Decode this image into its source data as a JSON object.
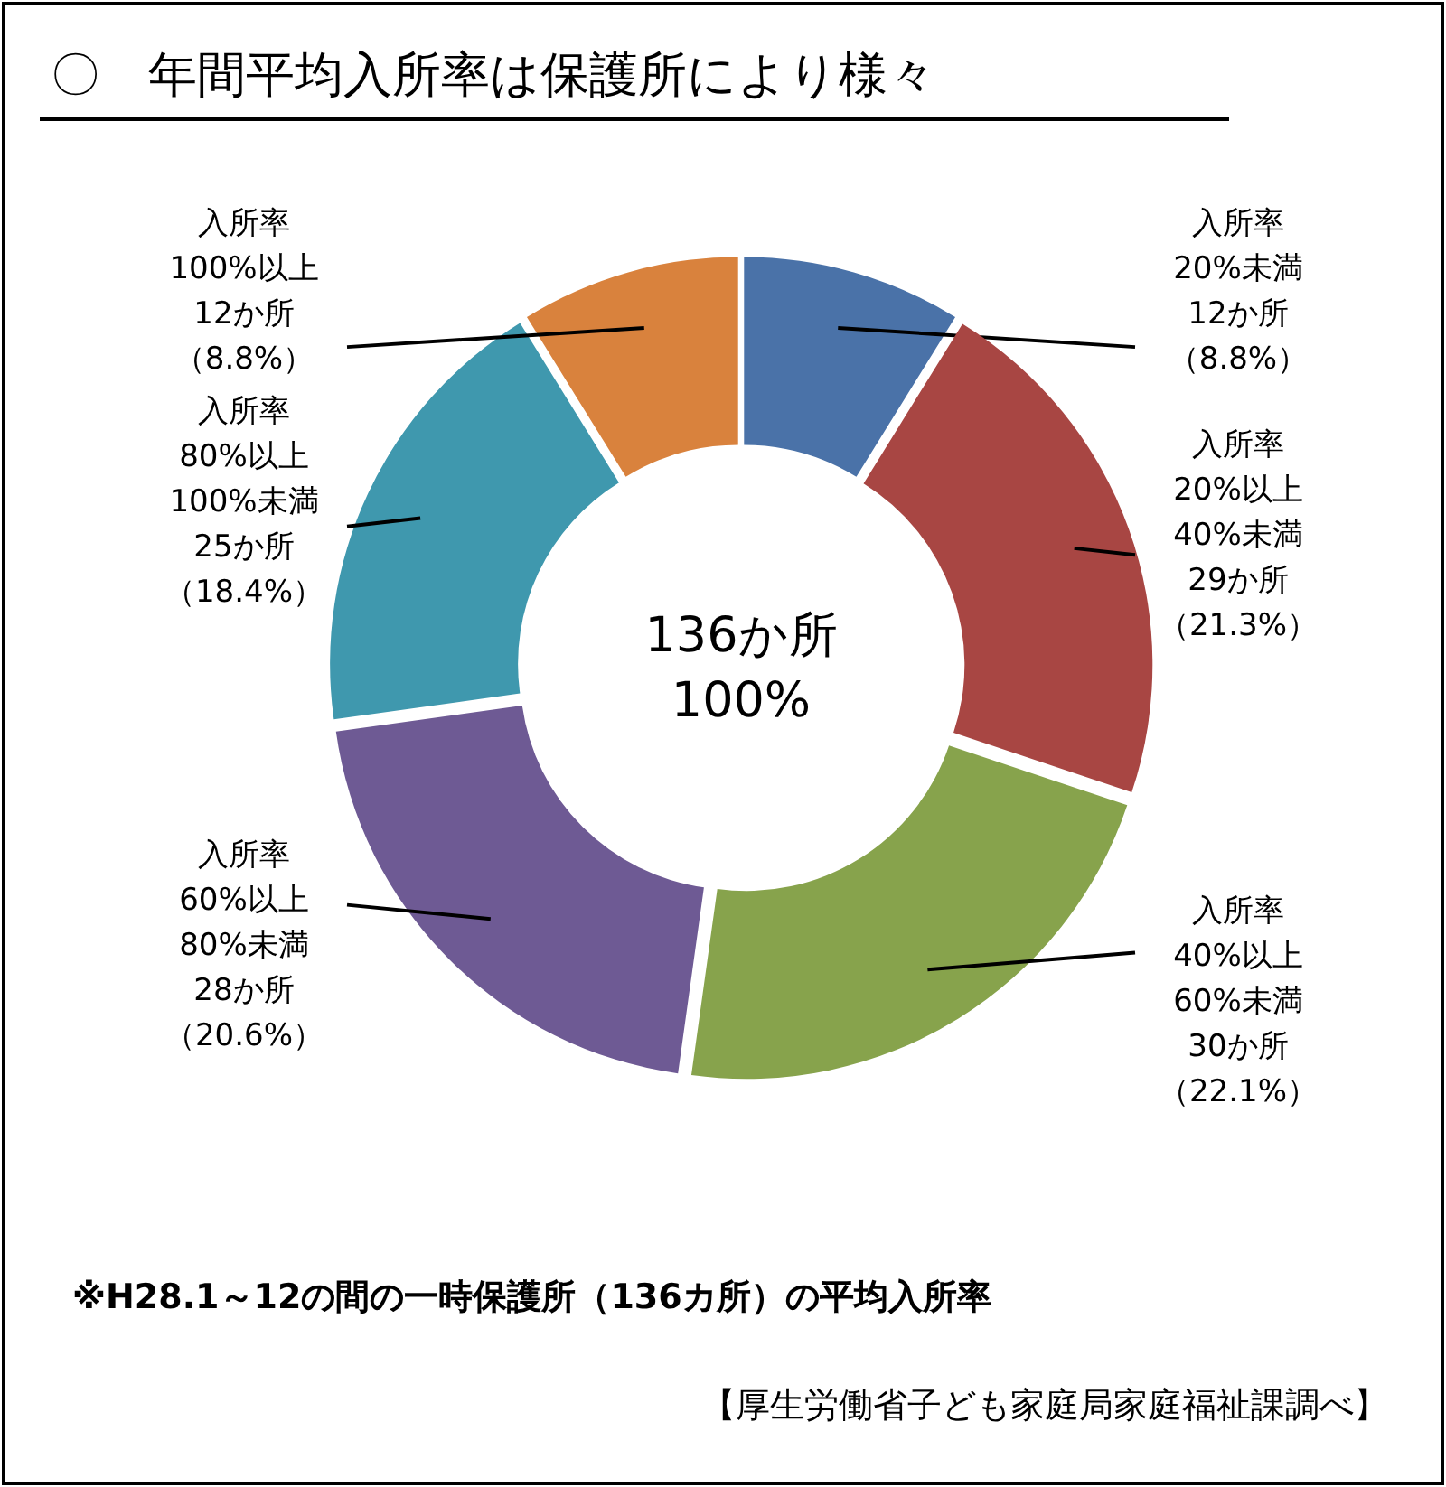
{
  "chart_data": {
    "type": "donut",
    "title": "〇　年間平均入所率は保護所により様々",
    "categories": [
      "入所率\n20%未満",
      "入所率\n20%以上\n40%未満",
      "入所率\n40%以上\n60%未満",
      "入所率\n60%以上\n80%未満",
      "入所率\n80%以上\n100%未満",
      "入所率\n100%以上"
    ],
    "values": [
      12,
      29,
      30,
      28,
      25,
      12
    ],
    "value_labels": [
      "12か所（8.8%）",
      "29か所（21.3%）",
      "30か所（22.1%）",
      "28か所（20.6%）",
      "25か所（18.4%）",
      "12か所（8.8%）"
    ],
    "colors": [
      "#4a72a8",
      "#a84643",
      "#87a34c",
      "#6e5a94",
      "#3f98ae",
      "#d9823d"
    ],
    "annotations": [
      "136か所\n100%",
      "※H28.1～12の間の一時保護所（136カ所）の平均入所率",
      "【厚生労働省子ども家庭局家庭福祉課調べ】"
    ],
    "data_labels": true
  }
}
